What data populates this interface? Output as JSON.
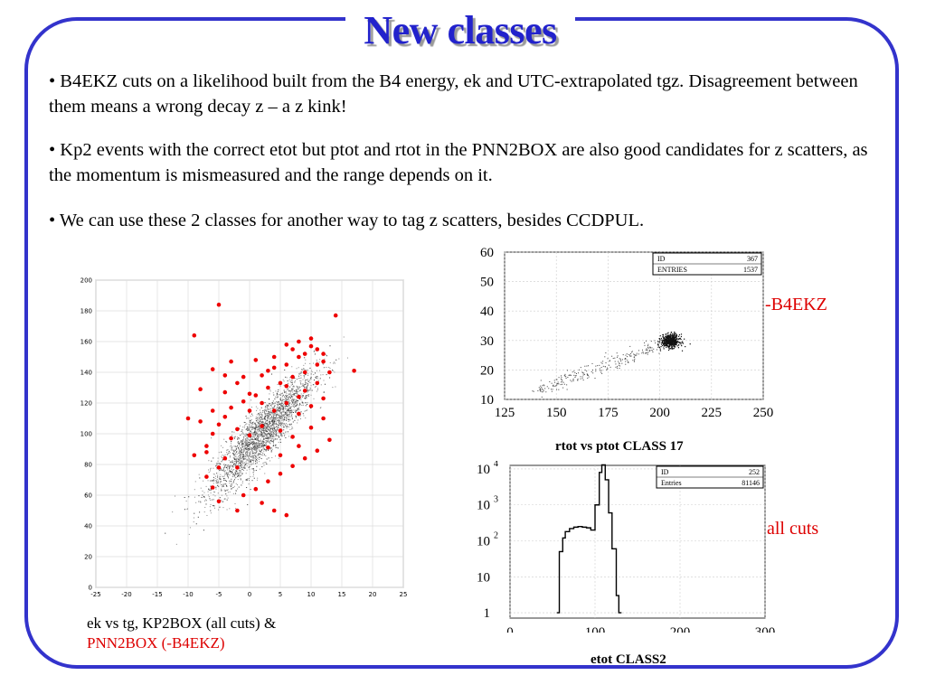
{
  "slide": {
    "title": "New classes",
    "bullets": [
      "• B4EKZ cuts on a likelihood built from the B4 energy, ek and UTC-extrapolated tgz. Disagreement between them means a wrong decay z – a z kink!",
      "• Kp2 events with the correct etot but ptot and rtot in the PNN2BOX are also good candidates for z scatters, as the momentum is mismeasured and the range depends on it.",
      "• We can use these 2 classes for another way to tag z scatters, besides CCDPUL."
    ],
    "caption_line1": "ek vs tg, KP2BOX (all cuts) &",
    "caption_line2": "PNN2BOX (-B4EKZ)",
    "anno_b4ekz": "-B4EKZ",
    "anno_allcuts": "all cuts",
    "title_rtot": "rtot vs ptot CLASS 17",
    "title_etot": "etot CLASS2",
    "stats_rtot": {
      "id_label": "ID",
      "id_value": "367",
      "entries_label": "ENTRIES",
      "entries_value": "1537"
    },
    "stats_etot": {
      "id_label": "ID",
      "id_value": "252",
      "entries_label": "Entries",
      "entries_value": "81146"
    },
    "colors": {
      "frame": "#3333cc",
      "title": "#2222cc",
      "highlight": "#dd0000"
    }
  },
  "chart_data": [
    {
      "type": "scatter",
      "title": "",
      "xlabel": "",
      "ylabel": "",
      "xlim": [
        -25,
        25
      ],
      "ylim": [
        0,
        200
      ],
      "xticks": [
        -25,
        -20,
        -15,
        -10,
        -5,
        0,
        5,
        10,
        15,
        20,
        25
      ],
      "yticks": [
        0,
        20,
        40,
        60,
        80,
        100,
        120,
        140,
        160,
        180,
        200
      ],
      "grid": true,
      "series": [
        {
          "name": "",
          "color": "#888888",
          "description_points": "dense cloud along ek ≈ 4·tg + 90"
        },
        {
          "name": "",
          "color": "#ee0000",
          "points": [
            [
              -5,
              184
            ],
            [
              14,
              177
            ],
            [
              -9,
              164
            ],
            [
              -8,
              129
            ],
            [
              -10,
              110
            ],
            [
              -9,
              86
            ],
            [
              -6,
              142
            ],
            [
              17,
              141
            ],
            [
              -5,
              56
            ],
            [
              -2,
              50
            ],
            [
              4,
              150
            ],
            [
              6,
              158
            ],
            [
              8,
              160
            ],
            [
              10,
              162
            ],
            [
              11,
              155
            ],
            [
              12,
              147
            ],
            [
              9,
              140
            ],
            [
              7,
              137
            ],
            [
              5,
              133
            ],
            [
              3,
              130
            ],
            [
              1,
              125
            ],
            [
              -1,
              121
            ],
            [
              -3,
              117
            ],
            [
              -4,
              111
            ],
            [
              -5,
              106
            ],
            [
              -6,
              100
            ],
            [
              -7,
              92
            ],
            [
              -4,
              84
            ],
            [
              -2,
              78
            ],
            [
              0,
              126
            ],
            [
              2,
              138
            ],
            [
              4,
              143
            ],
            [
              6,
              131
            ],
            [
              8,
              124
            ],
            [
              10,
              118
            ],
            [
              12,
              110
            ],
            [
              13,
              96
            ],
            [
              11,
              89
            ],
            [
              9,
              84
            ],
            [
              7,
              79
            ],
            [
              5,
              74
            ],
            [
              3,
              69
            ],
            [
              1,
              64
            ],
            [
              -1,
              60
            ],
            [
              2,
              55
            ],
            [
              4,
              50
            ],
            [
              6,
              47
            ],
            [
              3,
              141
            ],
            [
              -2,
              133
            ],
            [
              0,
              115
            ],
            [
              2,
              105
            ],
            [
              -3,
              97
            ],
            [
              -5,
              78
            ],
            [
              -7,
              72
            ],
            [
              -6,
              65
            ],
            [
              7,
              155
            ],
            [
              9,
              152
            ],
            [
              11,
              133
            ],
            [
              1,
              148
            ],
            [
              -1,
              137
            ],
            [
              -4,
              127
            ],
            [
              6,
              120
            ],
            [
              8,
              113
            ],
            [
              10,
              104
            ],
            [
              12,
              123
            ],
            [
              13,
              140
            ],
            [
              -8,
              108
            ],
            [
              -3,
              147
            ],
            [
              2,
              120
            ],
            [
              4,
              115
            ],
            [
              5,
              102
            ],
            [
              7,
              98
            ],
            [
              9,
              128
            ],
            [
              11,
              145
            ],
            [
              -2,
              103
            ],
            [
              0,
              99
            ],
            [
              3,
              91
            ],
            [
              5,
              86
            ],
            [
              8,
              92
            ],
            [
              -6,
              115
            ],
            [
              -4,
              138
            ],
            [
              -7,
              88
            ],
            [
              6,
              145
            ],
            [
              8,
              150
            ],
            [
              10,
              157
            ],
            [
              12,
              152
            ]
          ]
        }
      ]
    },
    {
      "type": "scatter",
      "title": "rtot vs ptot CLASS 17",
      "xlabel": "",
      "ylabel": "",
      "xlim": [
        125,
        250
      ],
      "ylim": [
        10,
        60
      ],
      "xticks": [
        125,
        150,
        175,
        200,
        225,
        250
      ],
      "yticks": [
        10,
        20,
        30,
        40,
        50,
        60
      ],
      "grid": true,
      "series": [
        {
          "name": "",
          "color": "#222222",
          "description_points": "diagonal band from (140,13) to (205,30) with dense cluster at (205,30)"
        }
      ]
    },
    {
      "type": "line",
      "title": "etot CLASS2",
      "xlabel": "",
      "ylabel": "",
      "xlim": [
        0,
        300
      ],
      "ylog": true,
      "xticks": [
        0,
        100,
        200,
        300
      ],
      "ytick_labels": [
        "1",
        "10",
        "10^2",
        "10^3",
        "10^4"
      ],
      "grid": true,
      "series": [
        {
          "name": "",
          "x": [
            55,
            58,
            62,
            65,
            70,
            75,
            80,
            85,
            90,
            95,
            100,
            105,
            108,
            112,
            116,
            120,
            125,
            128
          ],
          "values": [
            1,
            50,
            120,
            180,
            220,
            240,
            250,
            240,
            230,
            200,
            1000,
            8000,
            13000,
            5000,
            600,
            60,
            3,
            1
          ]
        }
      ]
    }
  ]
}
